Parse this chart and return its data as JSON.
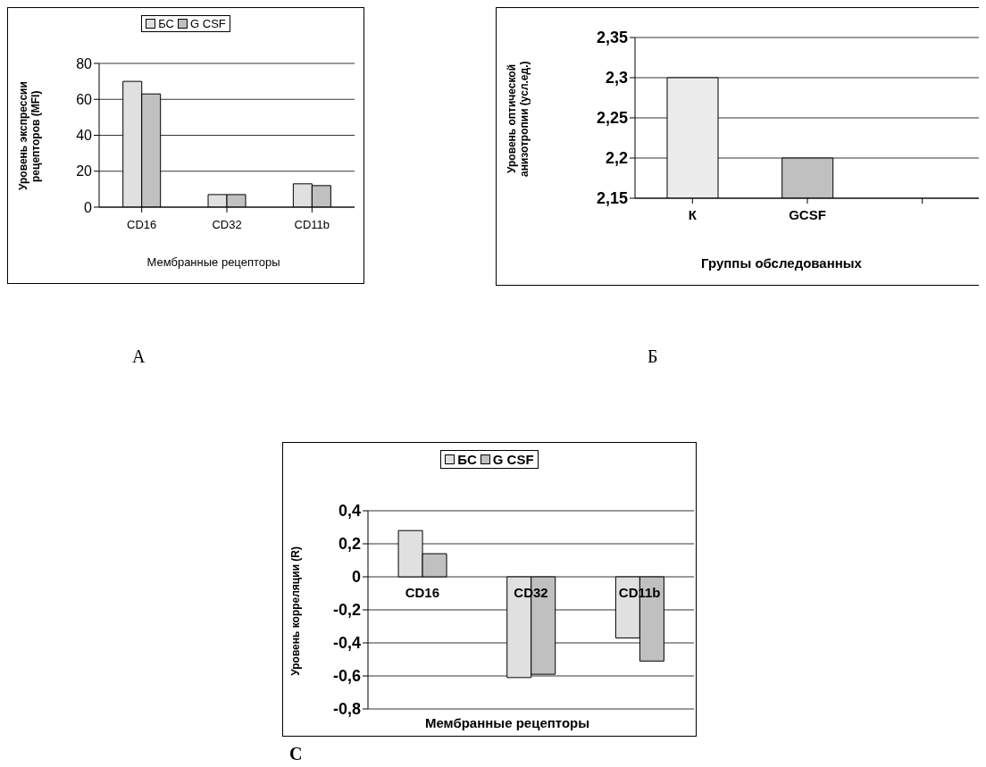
{
  "chart_data": [
    {
      "type": "bar",
      "categories": [
        "CD16",
        "CD32",
        "CD11b"
      ],
      "xlabel": "Мембранные рецепторы",
      "ylabel": "Уровень экспрессии рецепторов (MFI)",
      "series": [
        {
          "name": "БС",
          "color": "#e0e0e0",
          "values": [
            70,
            7,
            13
          ]
        },
        {
          "name": "G CSF",
          "color": "#c0c0c0",
          "values": [
            63,
            7,
            12
          ]
        }
      ],
      "ylim": [
        0,
        80
      ],
      "yticks": [
        0,
        20,
        40,
        60,
        80
      ],
      "grid": "y",
      "legend": "top",
      "annotations": [
        "А"
      ]
    },
    {
      "type": "bar",
      "categories": [
        "К",
        "GCSF",
        null
      ],
      "xlabel": "Группы обследованных",
      "ylabel": "Уровень оптической анизотропии  (усл.ед.)",
      "values": [
        2.3,
        2.2,
        null
      ],
      "colors": [
        "#ececec",
        "#c0c0c0",
        "#c0c0c0"
      ],
      "ylim": [
        2.15,
        2.35
      ],
      "yticks": [
        {
          "value": 2.15,
          "label": "2,15"
        },
        {
          "value": 2.2,
          "label": "2,2"
        },
        {
          "value": 2.25,
          "label": "2,25"
        },
        {
          "value": 2.3,
          "label": "2,3"
        },
        {
          "value": 2.35,
          "label": "2,35"
        }
      ],
      "grid": "y",
      "annotations": [
        "Б"
      ]
    },
    {
      "type": "bar",
      "categories": [
        "CD16",
        "CD32",
        "CD11b"
      ],
      "xlabel": "Мембранные рецепторы",
      "ylabel": "Уровень корреляции (R)",
      "series": [
        {
          "name": "БС",
          "color": "#e0e0e0",
          "values": [
            0.28,
            -0.61,
            -0.37
          ]
        },
        {
          "name": "G CSF",
          "color": "#c0c0c0",
          "values": [
            0.14,
            -0.59,
            -0.51
          ]
        }
      ],
      "ylim": [
        -0.8,
        0.4
      ],
      "yticks": [
        {
          "value": -0.8,
          "label": "-0,8"
        },
        {
          "value": -0.6,
          "label": "-0,6"
        },
        {
          "value": -0.4,
          "label": "-0,4"
        },
        {
          "value": -0.2,
          "label": "-0,2"
        },
        0,
        {
          "value": 0.2,
          "label": "0,2"
        },
        {
          "value": 0.4,
          "label": "0,4"
        }
      ],
      "grid": "y",
      "legend": "top",
      "annotations": [
        "C"
      ]
    }
  ]
}
